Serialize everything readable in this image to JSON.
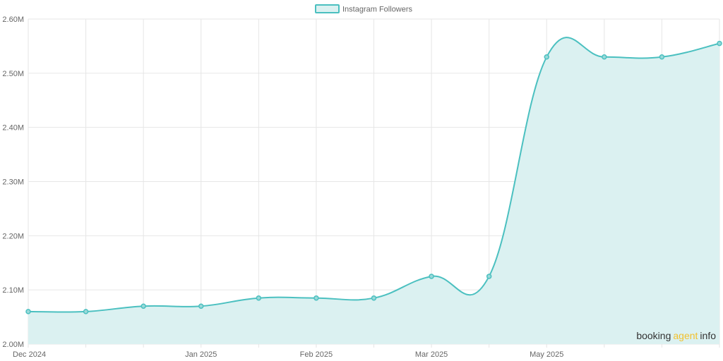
{
  "chart_data": {
    "type": "area",
    "title": "",
    "xlabel": "",
    "ylabel": "",
    "ylim": [
      2.0,
      2.6
    ],
    "y_ticks": [
      "2.00M",
      "2.10M",
      "2.20M",
      "2.30M",
      "2.40M",
      "2.50M",
      "2.60M"
    ],
    "x_tick_labels": [
      {
        "index": 0,
        "label": "Dec 2024"
      },
      {
        "index": 3,
        "label": "Jan 2025"
      },
      {
        "index": 5,
        "label": "Feb 2025"
      },
      {
        "index": 7,
        "label": "Mar 2025"
      },
      {
        "index": 9,
        "label": "May 2025"
      }
    ],
    "series": [
      {
        "name": "Instagram Followers",
        "values": [
          2.06,
          2.06,
          2.07,
          2.07,
          2.085,
          2.085,
          2.085,
          2.125,
          2.125,
          2.53,
          2.53,
          2.53,
          2.555
        ]
      }
    ],
    "grid": true,
    "legend": "top-center",
    "colors": {
      "line": "#4bc0c0",
      "fill": "#dbf1f1",
      "grid": "#e6e6e6"
    }
  },
  "watermark": {
    "part1": "booking",
    "part2": "agent",
    "part3": "info",
    "color_dark": "#333333",
    "color_accent": "#f2c12e"
  }
}
